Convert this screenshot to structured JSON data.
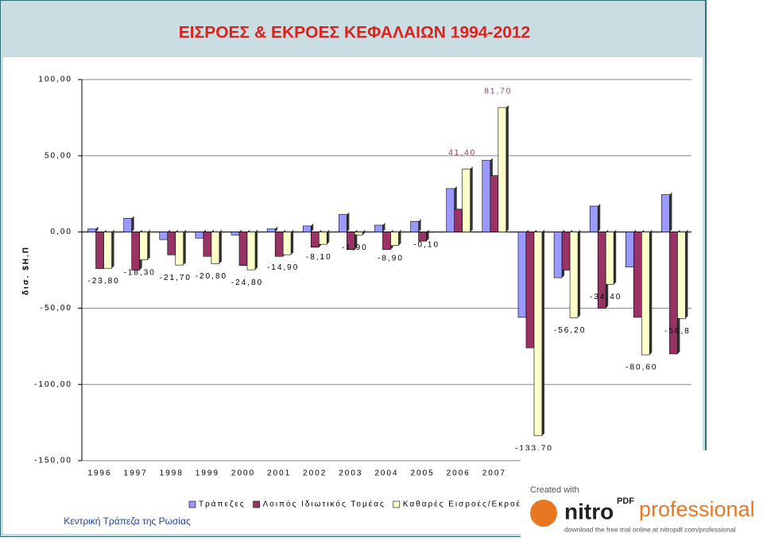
{
  "chart_data": {
    "type": "bar",
    "title": "ΕΙΣΡΟΕΣ & ΕΚΡΟΕΣ ΚΕΦΑΛΑΙΩΝ 1994-2012",
    "y_label": "δισ. $Η.Π",
    "source": "Κεντρική Τράπεζα της Ρωσίας",
    "categories": [
      "1996",
      "1997",
      "1998",
      "1999",
      "2000",
      "2001",
      "2002",
      "2003",
      "2004",
      "2005",
      "2006",
      "2007",
      null,
      null,
      null,
      null,
      null
    ],
    "series": [
      {
        "name": "Τράπεζες",
        "color": "#9999ff",
        "values": [
          2,
          9,
          -5,
          -4,
          -2,
          2,
          4,
          11.5,
          4.5,
          7,
          28.5,
          47,
          -56,
          -30,
          17,
          -23,
          24.5
        ]
      },
      {
        "name": "Λοιπός Ιδιωτικός Τομέας",
        "color": "#993366",
        "values": [
          -24,
          -25,
          -15,
          -16,
          -22,
          -16,
          -10,
          -11.5,
          -11.5,
          -6,
          15,
          37,
          -76,
          -25,
          -50,
          -56,
          -80
        ]
      },
      {
        "name": "Καθαρές Εισροές/Εκροές Κεφαλαίων",
        "color": "#ffffcc",
        "values": [
          -23.8,
          -18.3,
          -21.7,
          -20.8,
          -24.8,
          -14.9,
          -8.1,
          -1.9,
          -8.9,
          -0.1,
          41.4,
          81.7,
          -133.7,
          -56.2,
          -34.4,
          -80.6,
          -56.8
        ],
        "value_labels": [
          "-23,80",
          "-18,30",
          "-21,70",
          "-20,80",
          "-24,80",
          "-14,90",
          "-8,10",
          "-1,90",
          "-8,90",
          "-0,10",
          "41,40",
          "81,70",
          "-133,70",
          "-56,20",
          "-34,40",
          "-80,60",
          "-56,8"
        ]
      }
    ],
    "ylim": [
      -150,
      100
    ],
    "yticks": [
      {
        "value": 100,
        "label": "100,00"
      },
      {
        "value": 50,
        "label": "50,00"
      },
      {
        "value": 0,
        "label": "0,00"
      },
      {
        "value": -50,
        "label": "-50,00"
      },
      {
        "value": -100,
        "label": "-100,00"
      },
      {
        "value": -150,
        "label": "-150,00"
      }
    ],
    "grid": true
  },
  "watermark": {
    "line1": "Created with",
    "brand": "nitro",
    "brand_sup": "PDF",
    "product": "professional",
    "line2": "download the free trial online at nitropdf.com/professional"
  }
}
